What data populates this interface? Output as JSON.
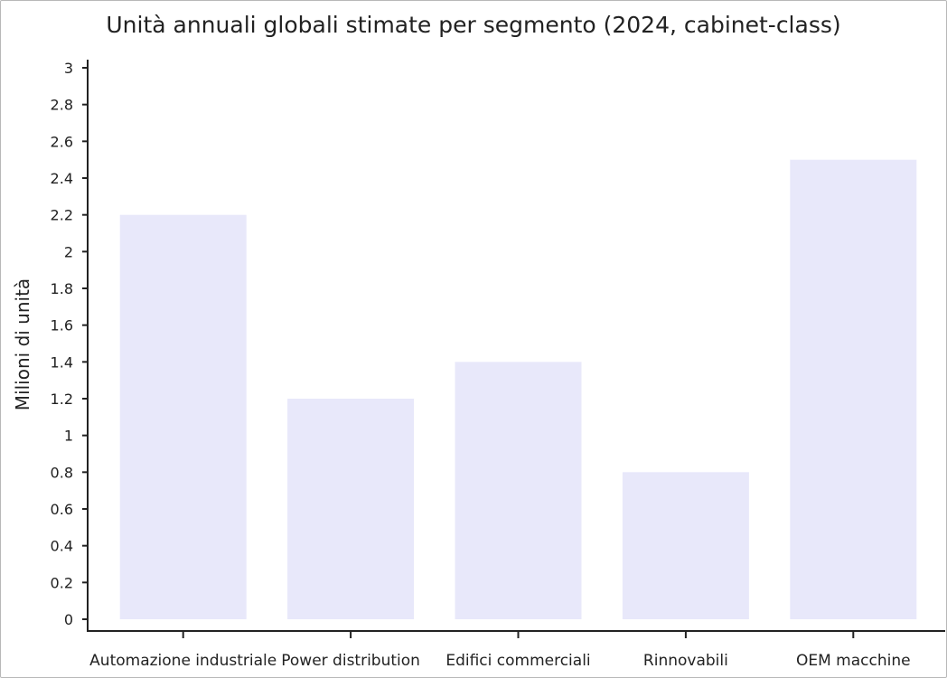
{
  "chart_data": {
    "type": "bar",
    "title": "Unità annuali globali stimate per segmento (2024, cabinet-class)",
    "xlabel": "",
    "ylabel": "Milioni di unità",
    "categories": [
      "Automazione industriale",
      "Power distribution",
      "Edifici commerciali",
      "Rinnovabili",
      "OEM macchine"
    ],
    "values": [
      2.2,
      1.2,
      1.4,
      0.8,
      2.5
    ],
    "ylim": [
      0,
      3
    ],
    "yticks": [
      "0",
      "0.2",
      "0.4",
      "0.6",
      "0.8",
      "1",
      "1.2",
      "1.4",
      "1.6",
      "1.8",
      "2",
      "2.2",
      "2.4",
      "2.6",
      "2.8",
      "3"
    ],
    "grid": false,
    "legend": "none",
    "bar_color": "#e8e8fa",
    "axis_color": "#222222"
  }
}
